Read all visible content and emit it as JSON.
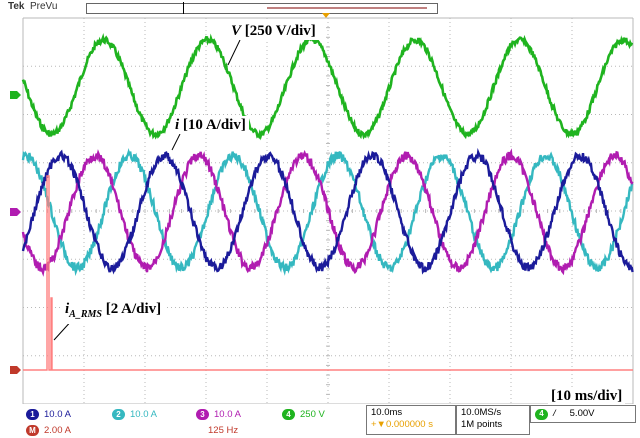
{
  "header": {
    "brand": "Tek",
    "mode": "PreVu"
  },
  "annotations": {
    "voltage": {
      "symbol": "V",
      "scale": "[250 V/div]"
    },
    "current": {
      "symbol": "i",
      "scale": "[10 A/div]"
    },
    "rms": {
      "symbol": "i",
      "subscript": "A_RMS",
      "scale": "[2 A/div]"
    },
    "time": "[10 ms/div]"
  },
  "channels": [
    {
      "id": "1",
      "value": "10.0 A",
      "color": "#1b1b9a"
    },
    {
      "id": "2",
      "value": "10.0 A",
      "color": "#35b8c0"
    },
    {
      "id": "3",
      "value": "10.0 A",
      "color": "#b01cb0"
    },
    {
      "id": "4",
      "value": "250 V",
      "color": "#1fb31f"
    }
  ],
  "math": {
    "id": "M",
    "value": "2.00 A",
    "color": "#c0392b",
    "freq": "125 Hz"
  },
  "timebase": {
    "scale": "10.0ms",
    "position": "+▼0.000000 s"
  },
  "acquisition": {
    "rate": "10.0MS/s",
    "points": "1M points"
  },
  "trigger": {
    "source": "4",
    "slope": "/",
    "level": "5.00V"
  },
  "colors": {
    "grid": "#b8b8b8",
    "screen": "#ffffff",
    "rms_trace": "#ff8080"
  }
}
